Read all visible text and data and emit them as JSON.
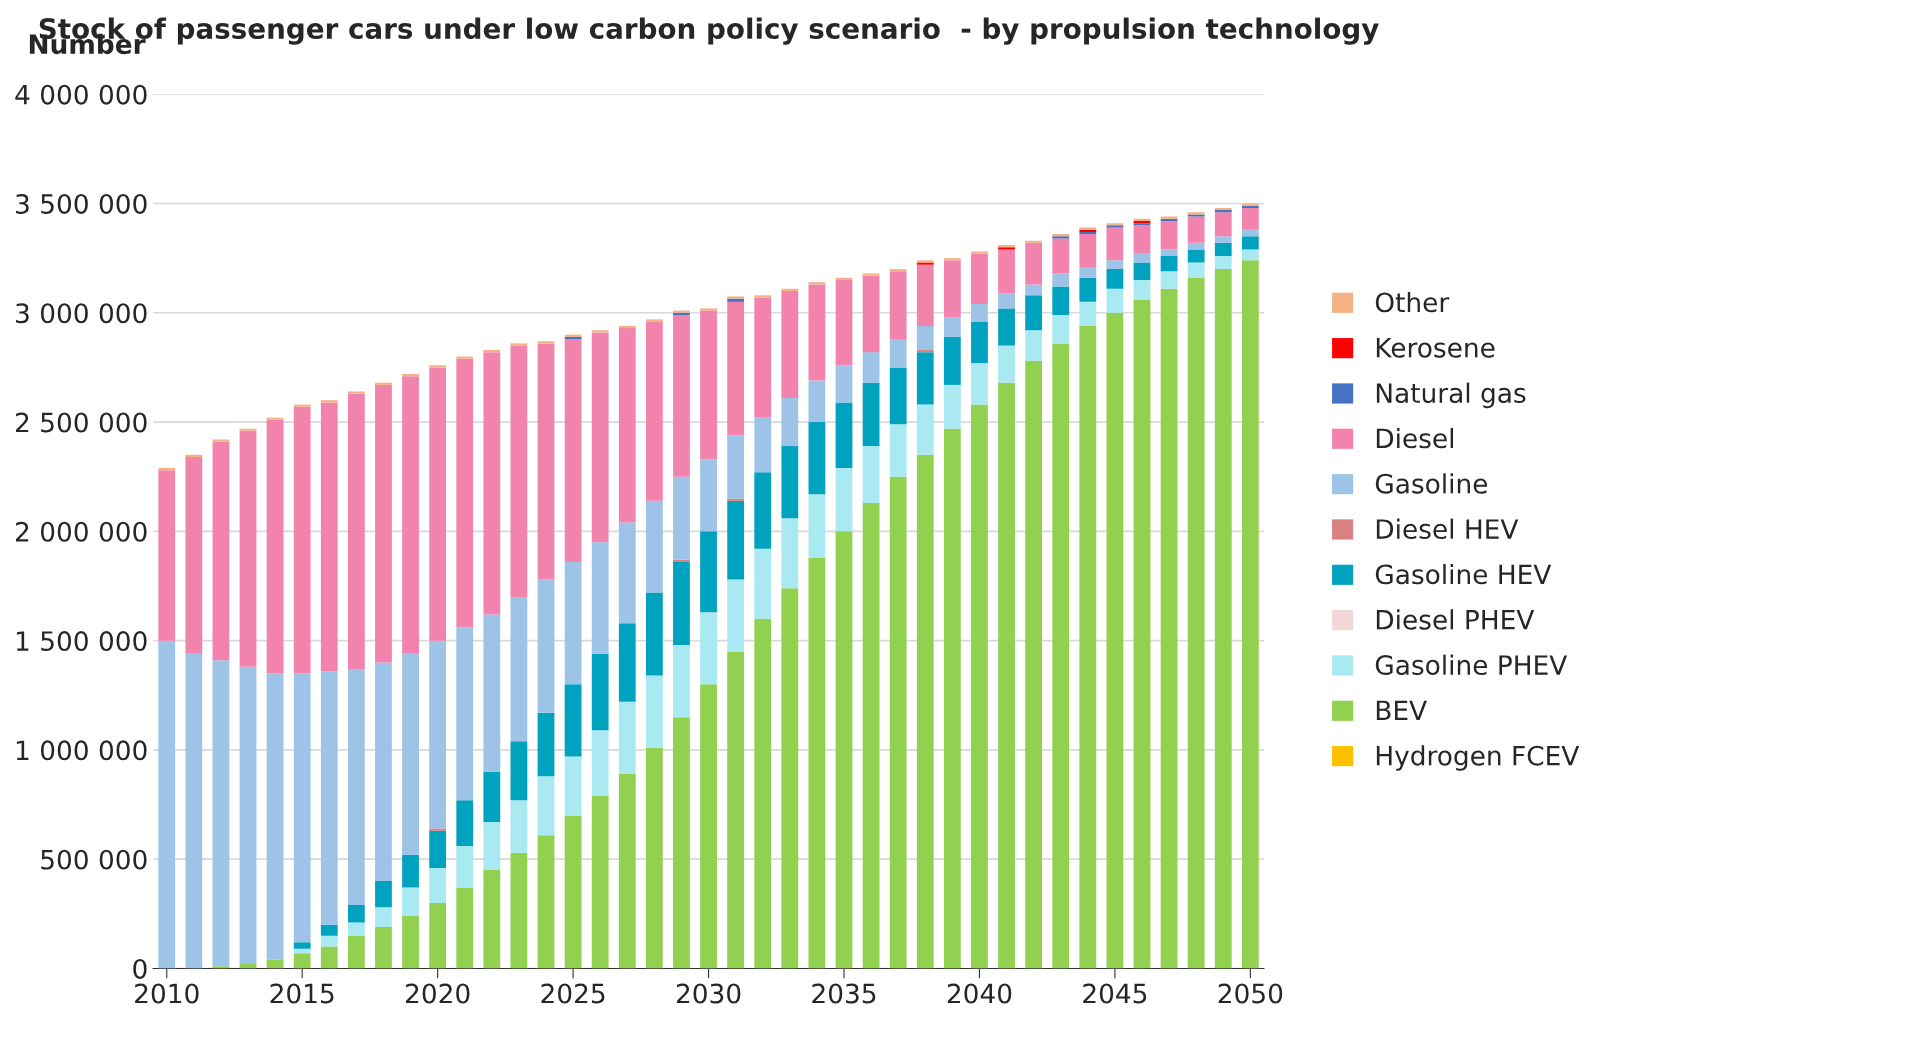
{
  "chart_data": {
    "type": "bar",
    "title": "Stock of passenger cars under low carbon policy scenario  - by propulsion technology",
    "ylabel": "Number",
    "stacked": true,
    "legend": "right",
    "grid": "y",
    "x": [
      2010,
      2011,
      2012,
      2013,
      2014,
      2015,
      2016,
      2017,
      2018,
      2019,
      2020,
      2021,
      2022,
      2023,
      2024,
      2025,
      2026,
      2027,
      2028,
      2029,
      2030,
      2031,
      2032,
      2033,
      2034,
      2035,
      2036,
      2037,
      2038,
      2039,
      2040,
      2041,
      2042,
      2043,
      2044,
      2045,
      2046,
      2047,
      2048,
      2049,
      2050
    ],
    "xlim": [
      2009.5,
      2050.5
    ],
    "xticks": [
      2010,
      2015,
      2020,
      2025,
      2030,
      2035,
      2040,
      2045,
      2050
    ],
    "ylim": [
      0,
      4000000
    ],
    "yticks": [
      0,
      {
        "value": 500000,
        "label": "500 000"
      },
      {
        "value": 1000000,
        "label": "1 000 000"
      },
      {
        "value": 1500000,
        "label": "1 500 000"
      },
      {
        "value": 2000000,
        "label": "2 000 000"
      },
      {
        "value": 2500000,
        "label": "2 500 000"
      },
      {
        "value": 3000000,
        "label": "3 000 000"
      },
      {
        "value": 3500000,
        "label": "3 500 000"
      },
      {
        "value": 4000000,
        "label": "4 000 000"
      }
    ],
    "series": [
      {
        "name": "Hydrogen FCEV",
        "color": "#ffc000",
        "values": [
          0,
          0,
          0,
          0,
          0,
          0,
          0,
          0,
          0,
          0,
          0,
          0,
          0,
          0,
          0,
          0,
          0,
          0,
          0,
          0,
          0,
          0,
          0,
          0,
          0,
          0,
          0,
          0,
          0,
          0,
          0,
          0,
          0,
          0,
          0,
          0,
          0,
          0,
          0,
          0,
          0
        ]
      },
      {
        "name": "BEV",
        "color": "#92d050",
        "values": [
          0,
          0,
          10000,
          20000,
          40000,
          70000,
          100000,
          150000,
          190000,
          240000,
          300000,
          370000,
          450000,
          530000,
          610000,
          700000,
          790000,
          890000,
          1010000,
          1150000,
          1300000,
          1450000,
          1600000,
          1740000,
          1880000,
          2000000,
          2130000,
          2250000,
          2350000,
          2470000,
          2580000,
          2680000,
          2780000,
          2860000,
          2940000,
          3000000,
          3060000,
          3110000,
          3160000,
          3200000,
          3240000
        ]
      },
      {
        "name": "Gasoline PHEV",
        "color": "#a9e9f1",
        "values": [
          0,
          0,
          0,
          0,
          0,
          20000,
          50000,
          60000,
          90000,
          130000,
          160000,
          190000,
          220000,
          240000,
          270000,
          270000,
          300000,
          330000,
          330000,
          330000,
          330000,
          330000,
          320000,
          320000,
          290000,
          290000,
          260000,
          240000,
          230000,
          200000,
          190000,
          170000,
          140000,
          130000,
          110000,
          110000,
          90000,
          80000,
          70000,
          60000,
          50000
        ]
      },
      {
        "name": "Diesel PHEV",
        "color": "#f2d7d9",
        "values": [
          0,
          0,
          0,
          0,
          0,
          0,
          0,
          0,
          0,
          0,
          0,
          0,
          0,
          0,
          0,
          0,
          0,
          0,
          0,
          0,
          0,
          0,
          0,
          0,
          0,
          0,
          0,
          0,
          0,
          0,
          0,
          0,
          0,
          0,
          0,
          0,
          0,
          0,
          0,
          0,
          0
        ]
      },
      {
        "name": "Gasoline HEV",
        "color": "#00a3bf",
        "values": [
          0,
          0,
          0,
          0,
          0,
          30000,
          50000,
          80000,
          120000,
          150000,
          170000,
          210000,
          230000,
          270000,
          290000,
          330000,
          350000,
          360000,
          380000,
          380000,
          370000,
          360000,
          350000,
          330000,
          330000,
          300000,
          290000,
          260000,
          240000,
          220000,
          190000,
          170000,
          160000,
          130000,
          110000,
          90000,
          80000,
          70000,
          60000,
          60000,
          60000
        ]
      },
      {
        "name": "Diesel HEV",
        "color": "#d98080",
        "values": [
          0,
          0,
          0,
          0,
          0,
          0,
          0,
          0,
          0,
          0,
          10000,
          0,
          0,
          0,
          0,
          0,
          0,
          0,
          0,
          10000,
          0,
          10000,
          0,
          0,
          0,
          0,
          0,
          0,
          10000,
          0,
          0,
          0,
          0,
          0,
          0,
          0,
          0,
          0,
          0,
          0,
          0
        ]
      },
      {
        "name": "Gasoline",
        "color": "#9dc3e6",
        "values": [
          1500000,
          1440000,
          1400000,
          1360000,
          1310000,
          1230000,
          1160000,
          1080000,
          1000000,
          920000,
          860000,
          790000,
          720000,
          660000,
          610000,
          560000,
          510000,
          460000,
          420000,
          380000,
          330000,
          290000,
          250000,
          220000,
          190000,
          170000,
          140000,
          130000,
          110000,
          90000,
          80000,
          70000,
          50000,
          60000,
          50000,
          40000,
          40000,
          30000,
          30000,
          30000,
          30000
        ]
      },
      {
        "name": "Diesel",
        "color": "#f283ad",
        "values": [
          780000,
          900000,
          1000000,
          1080000,
          1160000,
          1220000,
          1230000,
          1260000,
          1270000,
          1270000,
          1250000,
          1230000,
          1200000,
          1150000,
          1080000,
          1020000,
          960000,
          890000,
          820000,
          740000,
          680000,
          610000,
          550000,
          490000,
          440000,
          390000,
          350000,
          310000,
          280000,
          260000,
          230000,
          200000,
          190000,
          160000,
          150000,
          150000,
          130000,
          130000,
          120000,
          110000,
          100000
        ]
      },
      {
        "name": "Natural gas",
        "color": "#4472c4",
        "values": [
          0,
          0,
          0,
          0,
          0,
          0,
          0,
          0,
          0,
          0,
          0,
          0,
          0,
          0,
          0,
          10000,
          0,
          0,
          0,
          10000,
          0,
          15000,
          0,
          0,
          0,
          0,
          0,
          0,
          0,
          0,
          0,
          0,
          0,
          10000,
          10000,
          10000,
          10000,
          10000,
          10000,
          10000,
          10000
        ]
      },
      {
        "name": "Kerosene",
        "color": "#ff0000",
        "values": [
          0,
          0,
          0,
          0,
          0,
          0,
          0,
          0,
          0,
          0,
          0,
          0,
          0,
          0,
          0,
          0,
          0,
          0,
          0,
          0,
          0,
          0,
          0,
          0,
          0,
          0,
          0,
          0,
          10000,
          0,
          0,
          10000,
          0,
          0,
          10000,
          0,
          10000,
          0,
          0,
          0,
          0
        ]
      },
      {
        "name": "Other",
        "color": "#f4b183",
        "values": [
          10000,
          10000,
          10000,
          10000,
          10000,
          10000,
          10000,
          10000,
          10000,
          10000,
          10000,
          10000,
          10000,
          10000,
          10000,
          10000,
          10000,
          10000,
          10000,
          10000,
          10000,
          10000,
          10000,
          10000,
          10000,
          10000,
          10000,
          10000,
          10000,
          10000,
          10000,
          10000,
          10000,
          10000,
          10000,
          10000,
          10000,
          10000,
          10000,
          10000,
          10000
        ]
      }
    ]
  }
}
